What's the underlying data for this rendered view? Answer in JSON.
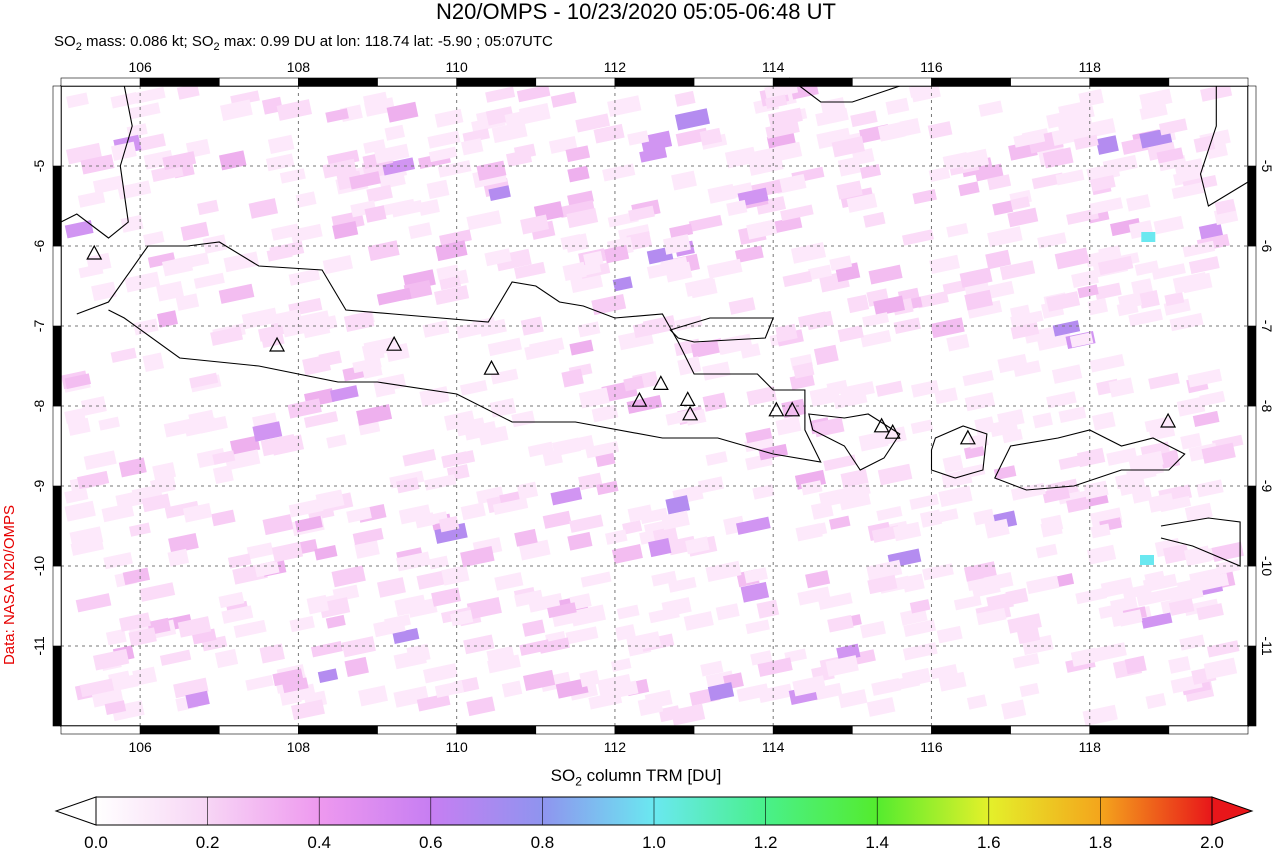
{
  "header": {
    "title": "N20/OMPS - 10/23/2020 05:05-06:48 UT",
    "subtitle_prefix": "SO",
    "subtitle_sub": "2",
    "subtitle_mid": " mass: 0.086 kt; SO",
    "subtitle_sub2": "2",
    "subtitle_rest": " max: 0.99 DU at lon: 118.74 lat: -5.90 ; 05:07UTC"
  },
  "credit": "Data: NASA N20/OMPS",
  "map": {
    "lon_range": [
      105,
      120
    ],
    "lat_range": [
      -12,
      -4
    ],
    "lon_ticks": [
      "106",
      "108",
      "110",
      "112",
      "114",
      "116",
      "118"
    ],
    "lat_ticks": [
      "-5",
      "-6",
      "-7",
      "-8",
      "-9",
      "-10",
      "-11"
    ],
    "lon_tick_values": [
      106,
      108,
      110,
      112,
      114,
      116,
      118
    ],
    "lat_tick_values": [
      -5,
      -6,
      -7,
      -8,
      -9,
      -10,
      -11
    ],
    "volcanoes": [
      [
        105.42,
        -6.1
      ],
      [
        107.73,
        -7.25
      ],
      [
        109.21,
        -7.24
      ],
      [
        110.44,
        -7.54
      ],
      [
        112.31,
        -7.94
      ],
      [
        112.58,
        -7.73
      ],
      [
        112.92,
        -7.93
      ],
      [
        112.95,
        -8.11
      ],
      [
        114.04,
        -8.06
      ],
      [
        114.24,
        -8.06
      ],
      [
        115.37,
        -8.26
      ],
      [
        115.51,
        -8.34
      ],
      [
        116.46,
        -8.41
      ],
      [
        118.99,
        -8.2
      ]
    ],
    "max_point": {
      "lon": 118.74,
      "lat": -5.9,
      "value": 0.99
    }
  },
  "colorbar": {
    "label_prefix": "SO",
    "label_sub": "2",
    "label_rest": " column TRM [DU]",
    "ticks": [
      "0.0",
      "0.2",
      "0.4",
      "0.6",
      "0.8",
      "1.0",
      "1.2",
      "1.4",
      "1.6",
      "1.8",
      "2.0"
    ],
    "range": [
      0,
      2
    ],
    "colors": [
      "#ffffff",
      "#f7d5f5",
      "#ee99ef",
      "#c77ef2",
      "#8f94ef",
      "#6ae8f0",
      "#49f08a",
      "#54ec2e",
      "#e4f02a",
      "#f4a51c",
      "#e8161a"
    ]
  }
}
